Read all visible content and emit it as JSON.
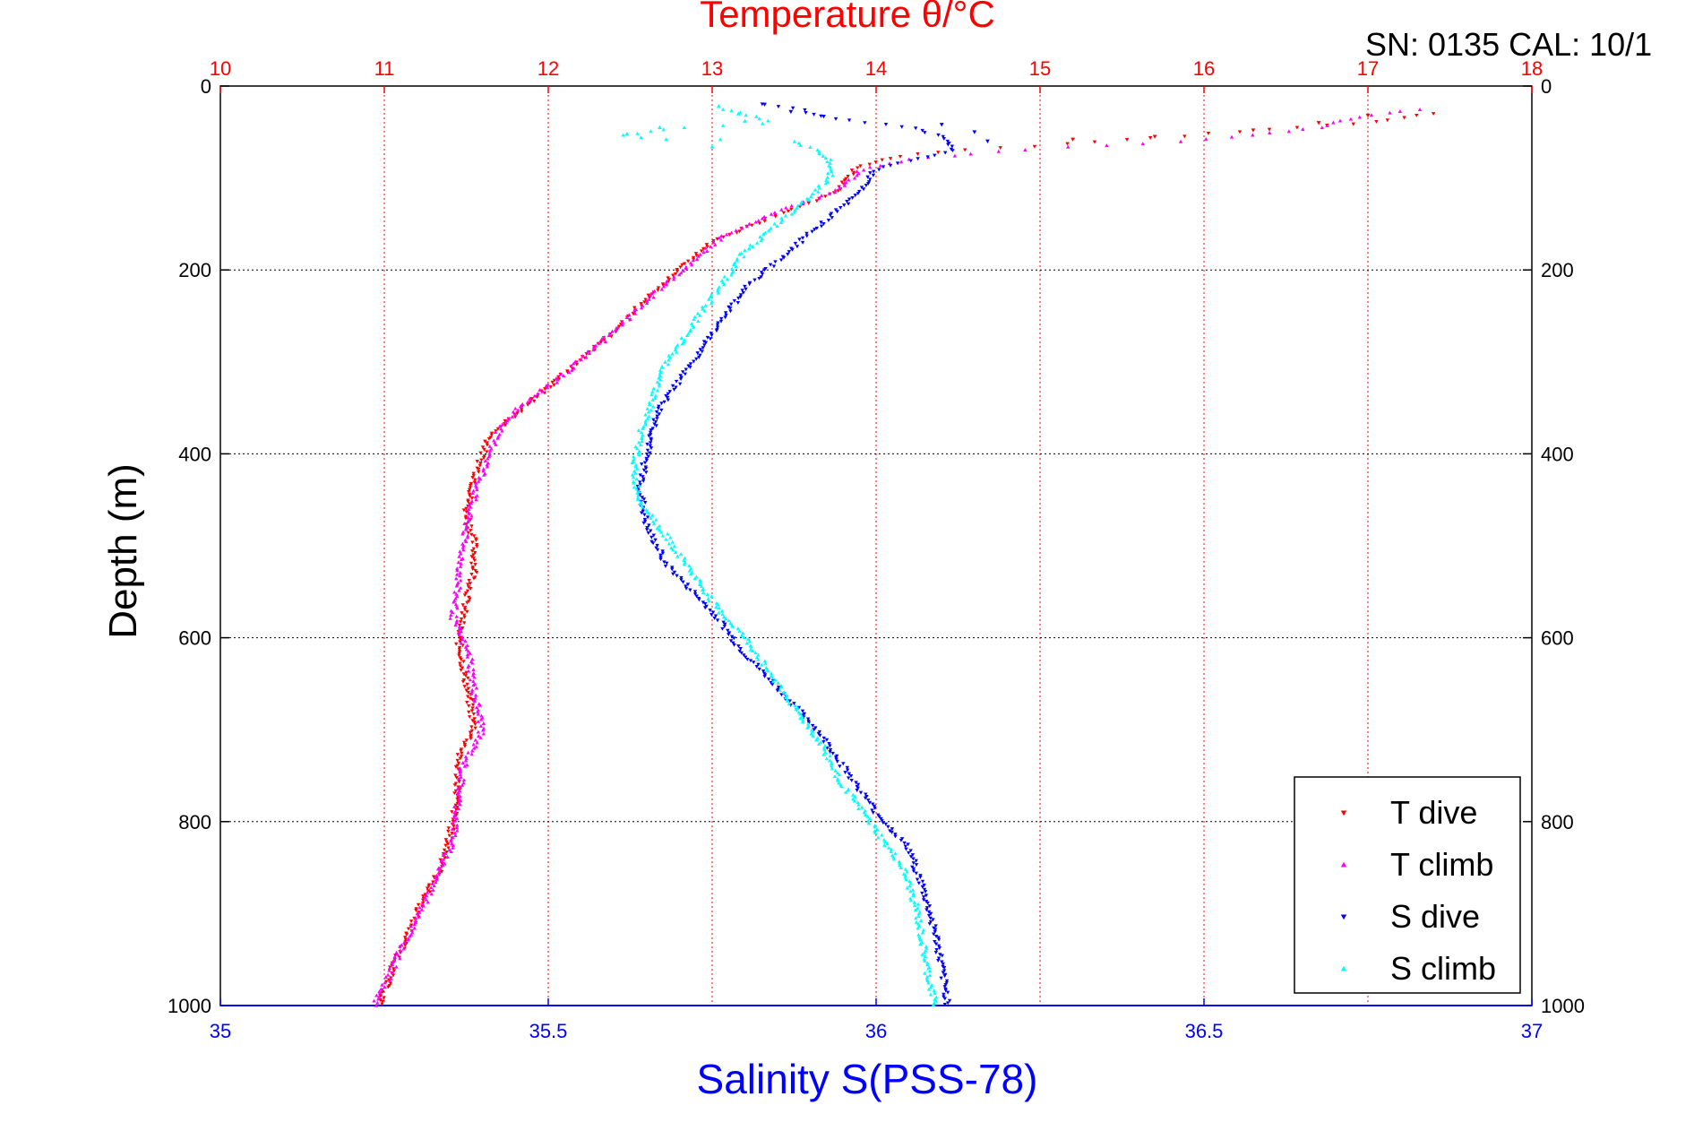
{
  "chart_data": {
    "type": "scatter",
    "title": "Temperature θ/°C",
    "corner_text": "SN: 0135  CAL: 10/1",
    "xlabel_bottom": "Salinity S(PSS-78)",
    "xlabel_top": "Temperature θ/°C",
    "ylabel": "Depth (m)",
    "ylim": [
      0,
      1000
    ],
    "y_inverted": true,
    "xlim_salinity": [
      35,
      37
    ],
    "xlim_temperature": [
      10,
      18
    ],
    "salinity_ticks": [
      "35",
      "35.5",
      "36",
      "36.5",
      "37"
    ],
    "temperature_ticks": [
      "10",
      "11",
      "12",
      "13",
      "14",
      "15",
      "16",
      "17",
      "18"
    ],
    "depth_ticks": [
      "0",
      "200",
      "400",
      "600",
      "800",
      "1000"
    ],
    "grid": true,
    "legend_position": "bottom-right",
    "colors": {
      "t_dive": "#ff0000",
      "t_climb": "#ff00ff",
      "s_dive": "#0000ff",
      "s_climb": "#00ffff",
      "temp_axis": "#ff0000",
      "sal_axis": "#0000ff"
    },
    "series": [
      {
        "name": "T dive",
        "axis": "temperature",
        "marker": "triangle-down",
        "profile": [
          [
            30,
            17.4
          ],
          [
            35,
            17.2
          ],
          [
            40,
            17.0
          ],
          [
            45,
            16.6
          ],
          [
            50,
            16.2
          ],
          [
            55,
            15.8
          ],
          [
            60,
            15.4
          ],
          [
            65,
            15.0
          ],
          [
            70,
            14.5
          ],
          [
            75,
            14.2
          ],
          [
            80,
            14.05
          ],
          [
            85,
            13.95
          ],
          [
            90,
            13.88
          ],
          [
            100,
            13.82
          ],
          [
            110,
            13.78
          ],
          [
            120,
            13.7
          ],
          [
            140,
            13.4
          ],
          [
            170,
            13.0
          ],
          [
            200,
            12.8
          ],
          [
            230,
            12.6
          ],
          [
            260,
            12.45
          ],
          [
            290,
            12.25
          ],
          [
            320,
            12.05
          ],
          [
            350,
            11.85
          ],
          [
            380,
            11.65
          ],
          [
            400,
            11.6
          ],
          [
            430,
            11.55
          ],
          [
            460,
            11.5
          ],
          [
            500,
            11.55
          ],
          [
            530,
            11.55
          ],
          [
            560,
            11.5
          ],
          [
            600,
            11.45
          ],
          [
            650,
            11.5
          ],
          [
            700,
            11.55
          ],
          [
            730,
            11.45
          ],
          [
            760,
            11.45
          ],
          [
            800,
            11.42
          ],
          [
            850,
            11.35
          ],
          [
            880,
            11.25
          ],
          [
            920,
            11.15
          ],
          [
            960,
            11.05
          ],
          [
            1000,
            10.97
          ]
        ]
      },
      {
        "name": "T climb",
        "axis": "temperature",
        "marker": "triangle-up",
        "profile": [
          [
            25,
            17.3
          ],
          [
            30,
            17.1
          ],
          [
            35,
            16.9
          ],
          [
            40,
            16.8
          ],
          [
            45,
            16.7
          ],
          [
            50,
            16.5
          ],
          [
            60,
            15.9
          ],
          [
            70,
            14.8
          ],
          [
            80,
            14.2
          ],
          [
            90,
            13.92
          ],
          [
            100,
            13.85
          ],
          [
            115,
            13.75
          ],
          [
            140,
            13.35
          ],
          [
            160,
            13.1
          ],
          [
            180,
            12.95
          ],
          [
            200,
            12.82
          ],
          [
            230,
            12.62
          ],
          [
            260,
            12.45
          ],
          [
            290,
            12.25
          ],
          [
            320,
            12.05
          ],
          [
            350,
            11.82
          ],
          [
            380,
            11.68
          ],
          [
            400,
            11.65
          ],
          [
            430,
            11.58
          ],
          [
            460,
            11.52
          ],
          [
            500,
            11.48
          ],
          [
            540,
            11.45
          ],
          [
            580,
            11.42
          ],
          [
            620,
            11.52
          ],
          [
            660,
            11.55
          ],
          [
            700,
            11.6
          ],
          [
            740,
            11.48
          ],
          [
            780,
            11.45
          ],
          [
            820,
            11.42
          ],
          [
            860,
            11.32
          ],
          [
            900,
            11.22
          ],
          [
            940,
            11.1
          ],
          [
            980,
            11.0
          ],
          [
            1000,
            10.93
          ]
        ]
      },
      {
        "name": "S dive",
        "axis": "salinity",
        "marker": "triangle-down",
        "profile": [
          [
            20,
            35.83
          ],
          [
            25,
            35.88
          ],
          [
            30,
            35.9
          ],
          [
            35,
            35.93
          ],
          [
            45,
            36.05
          ],
          [
            55,
            36.1
          ],
          [
            70,
            36.12
          ],
          [
            90,
            36.0
          ],
          [
            110,
            35.98
          ],
          [
            130,
            35.95
          ],
          [
            160,
            35.9
          ],
          [
            190,
            35.85
          ],
          [
            220,
            35.8
          ],
          [
            250,
            35.77
          ],
          [
            280,
            35.74
          ],
          [
            310,
            35.71
          ],
          [
            350,
            35.67
          ],
          [
            400,
            35.65
          ],
          [
            440,
            35.64
          ],
          [
            480,
            35.65
          ],
          [
            520,
            35.68
          ],
          [
            550,
            35.72
          ],
          [
            580,
            35.76
          ],
          [
            610,
            35.79
          ],
          [
            640,
            35.83
          ],
          [
            670,
            35.87
          ],
          [
            700,
            35.91
          ],
          [
            730,
            35.94
          ],
          [
            760,
            35.97
          ],
          [
            790,
            36.0
          ],
          [
            830,
            36.05
          ],
          [
            870,
            36.07
          ],
          [
            920,
            36.09
          ],
          [
            960,
            36.1
          ],
          [
            1000,
            36.11
          ]
        ]
      },
      {
        "name": "S climb",
        "axis": "salinity",
        "marker": "triangle-up",
        "profile": [
          [
            25,
            35.77
          ],
          [
            35,
            35.82
          ],
          [
            40,
            35.84
          ],
          [
            45,
            35.7
          ],
          [
            55,
            35.6
          ],
          [
            60,
            35.87
          ],
          [
            70,
            35.91
          ],
          [
            80,
            35.93
          ],
          [
            100,
            35.93
          ],
          [
            120,
            35.9
          ],
          [
            150,
            35.85
          ],
          [
            180,
            35.8
          ],
          [
            210,
            35.77
          ],
          [
            240,
            35.74
          ],
          [
            270,
            35.71
          ],
          [
            300,
            35.68
          ],
          [
            340,
            35.66
          ],
          [
            380,
            35.64
          ],
          [
            420,
            35.63
          ],
          [
            450,
            35.64
          ],
          [
            480,
            35.67
          ],
          [
            510,
            35.7
          ],
          [
            540,
            35.73
          ],
          [
            570,
            35.76
          ],
          [
            600,
            35.8
          ],
          [
            630,
            35.83
          ],
          [
            660,
            35.86
          ],
          [
            690,
            35.89
          ],
          [
            720,
            35.92
          ],
          [
            750,
            35.94
          ],
          [
            780,
            35.97
          ],
          [
            810,
            36.0
          ],
          [
            850,
            36.04
          ],
          [
            890,
            36.06
          ],
          [
            930,
            36.07
          ],
          [
            970,
            36.08
          ],
          [
            1000,
            36.09
          ]
        ]
      }
    ],
    "scattered_surface_points": {
      "t_dive": [
        [
          32,
          17.0
        ],
        [
          40,
          16.7
        ],
        [
          48,
          16.3
        ],
        [
          55,
          15.7
        ],
        [
          58,
          15.2
        ]
      ],
      "s_dive": [
        [
          20,
          35.83
        ],
        [
          28,
          35.87
        ],
        [
          33,
          35.92
        ],
        [
          42,
          36.1
        ],
        [
          50,
          36.15
        ],
        [
          60,
          36.17
        ]
      ],
      "s_climb": [
        [
          22,
          35.76
        ],
        [
          30,
          35.79
        ],
        [
          38,
          35.8
        ],
        [
          45,
          35.67
        ],
        [
          52,
          35.62
        ],
        [
          58,
          35.68
        ],
        [
          66,
          35.75
        ]
      ]
    }
  },
  "legend": {
    "items": [
      {
        "label": "T dive",
        "color": "#ff0000",
        "marker": "triangle-down"
      },
      {
        "label": "T climb",
        "color": "#ff00ff",
        "marker": "triangle-up"
      },
      {
        "label": "S dive",
        "color": "#0000ff",
        "marker": "triangle-down"
      },
      {
        "label": "S climb",
        "color": "#00ffff",
        "marker": "triangle-up"
      }
    ]
  }
}
